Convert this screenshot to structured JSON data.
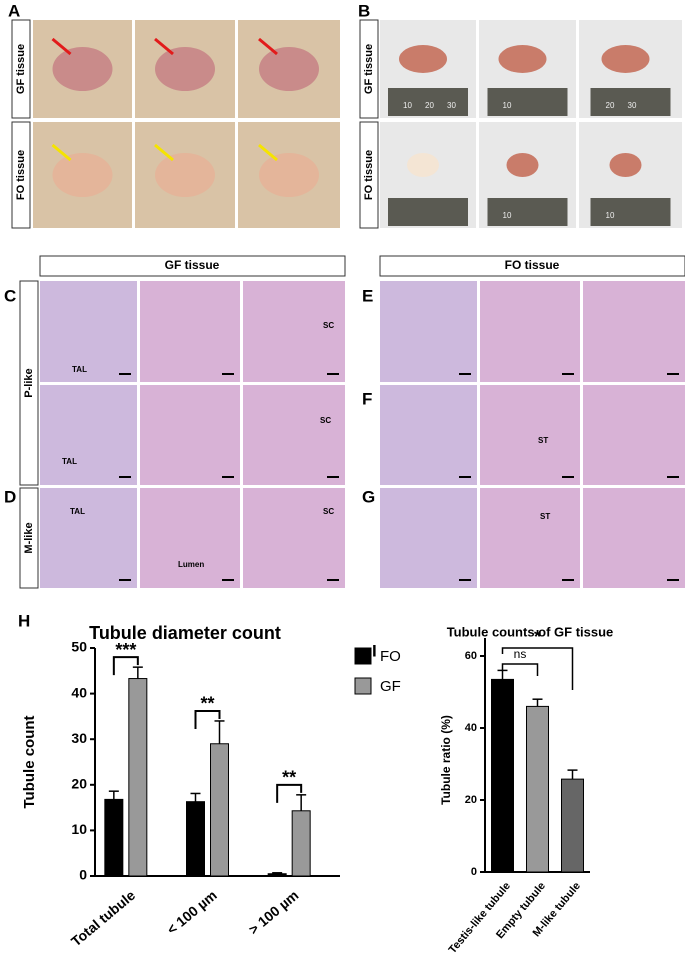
{
  "panel_labels": [
    "A",
    "B",
    "C",
    "D",
    "E",
    "F",
    "G",
    "H",
    "I"
  ],
  "gross": {
    "rows": [
      "GF tissue",
      "FO tissue"
    ],
    "ruler_labels": [
      [
        "10",
        "20",
        "30"
      ],
      [
        "10"
      ],
      [
        "20",
        "30"
      ],
      [],
      [
        "10"
      ],
      [
        "10"
      ]
    ]
  },
  "histology": {
    "headers": [
      "GF tissue",
      "FO tissue"
    ],
    "row_groups": [
      "P-like",
      "M-like"
    ],
    "annotations": [
      "TAL",
      "SC",
      "TAL",
      "SC",
      "TAL",
      "Lumen",
      "SC",
      "ST",
      "ST"
    ]
  },
  "chart_data": [
    {
      "type": "bar",
      "title": "Tubule diameter count",
      "ylabel": "Tubule count",
      "categories": [
        "Total tubule",
        "< 100 µm",
        "> 100 µm"
      ],
      "series": [
        {
          "name": "FO",
          "color": "#000000",
          "values": [
            16.8,
            16.3,
            0.5
          ],
          "errors": [
            1.8,
            1.8,
            0.2
          ]
        },
        {
          "name": "GF",
          "color": "#999999",
          "values": [
            43.3,
            29,
            14.3
          ],
          "errors": [
            2.5,
            5,
            3.5
          ]
        }
      ],
      "significance": [
        "***",
        "**",
        "**"
      ],
      "ylim": [
        0,
        50
      ],
      "yticks": [
        0,
        10,
        20,
        30,
        40,
        50
      ],
      "legend": "right"
    },
    {
      "type": "bar",
      "title": "Tubule counts of GF tissue",
      "ylabel": "Tubule ratio (%)",
      "categories": [
        "Testis-like tubule",
        "Empty tubule",
        "M-like tubule"
      ],
      "values": [
        53.5,
        46,
        25.8
      ],
      "errors": [
        2.5,
        2,
        2.5
      ],
      "colors": [
        "#000000",
        "#999999",
        "#666666"
      ],
      "significance": [
        "ns",
        "*"
      ],
      "ylim": [
        0,
        65
      ],
      "yticks": [
        0,
        20,
        40,
        60
      ]
    }
  ]
}
